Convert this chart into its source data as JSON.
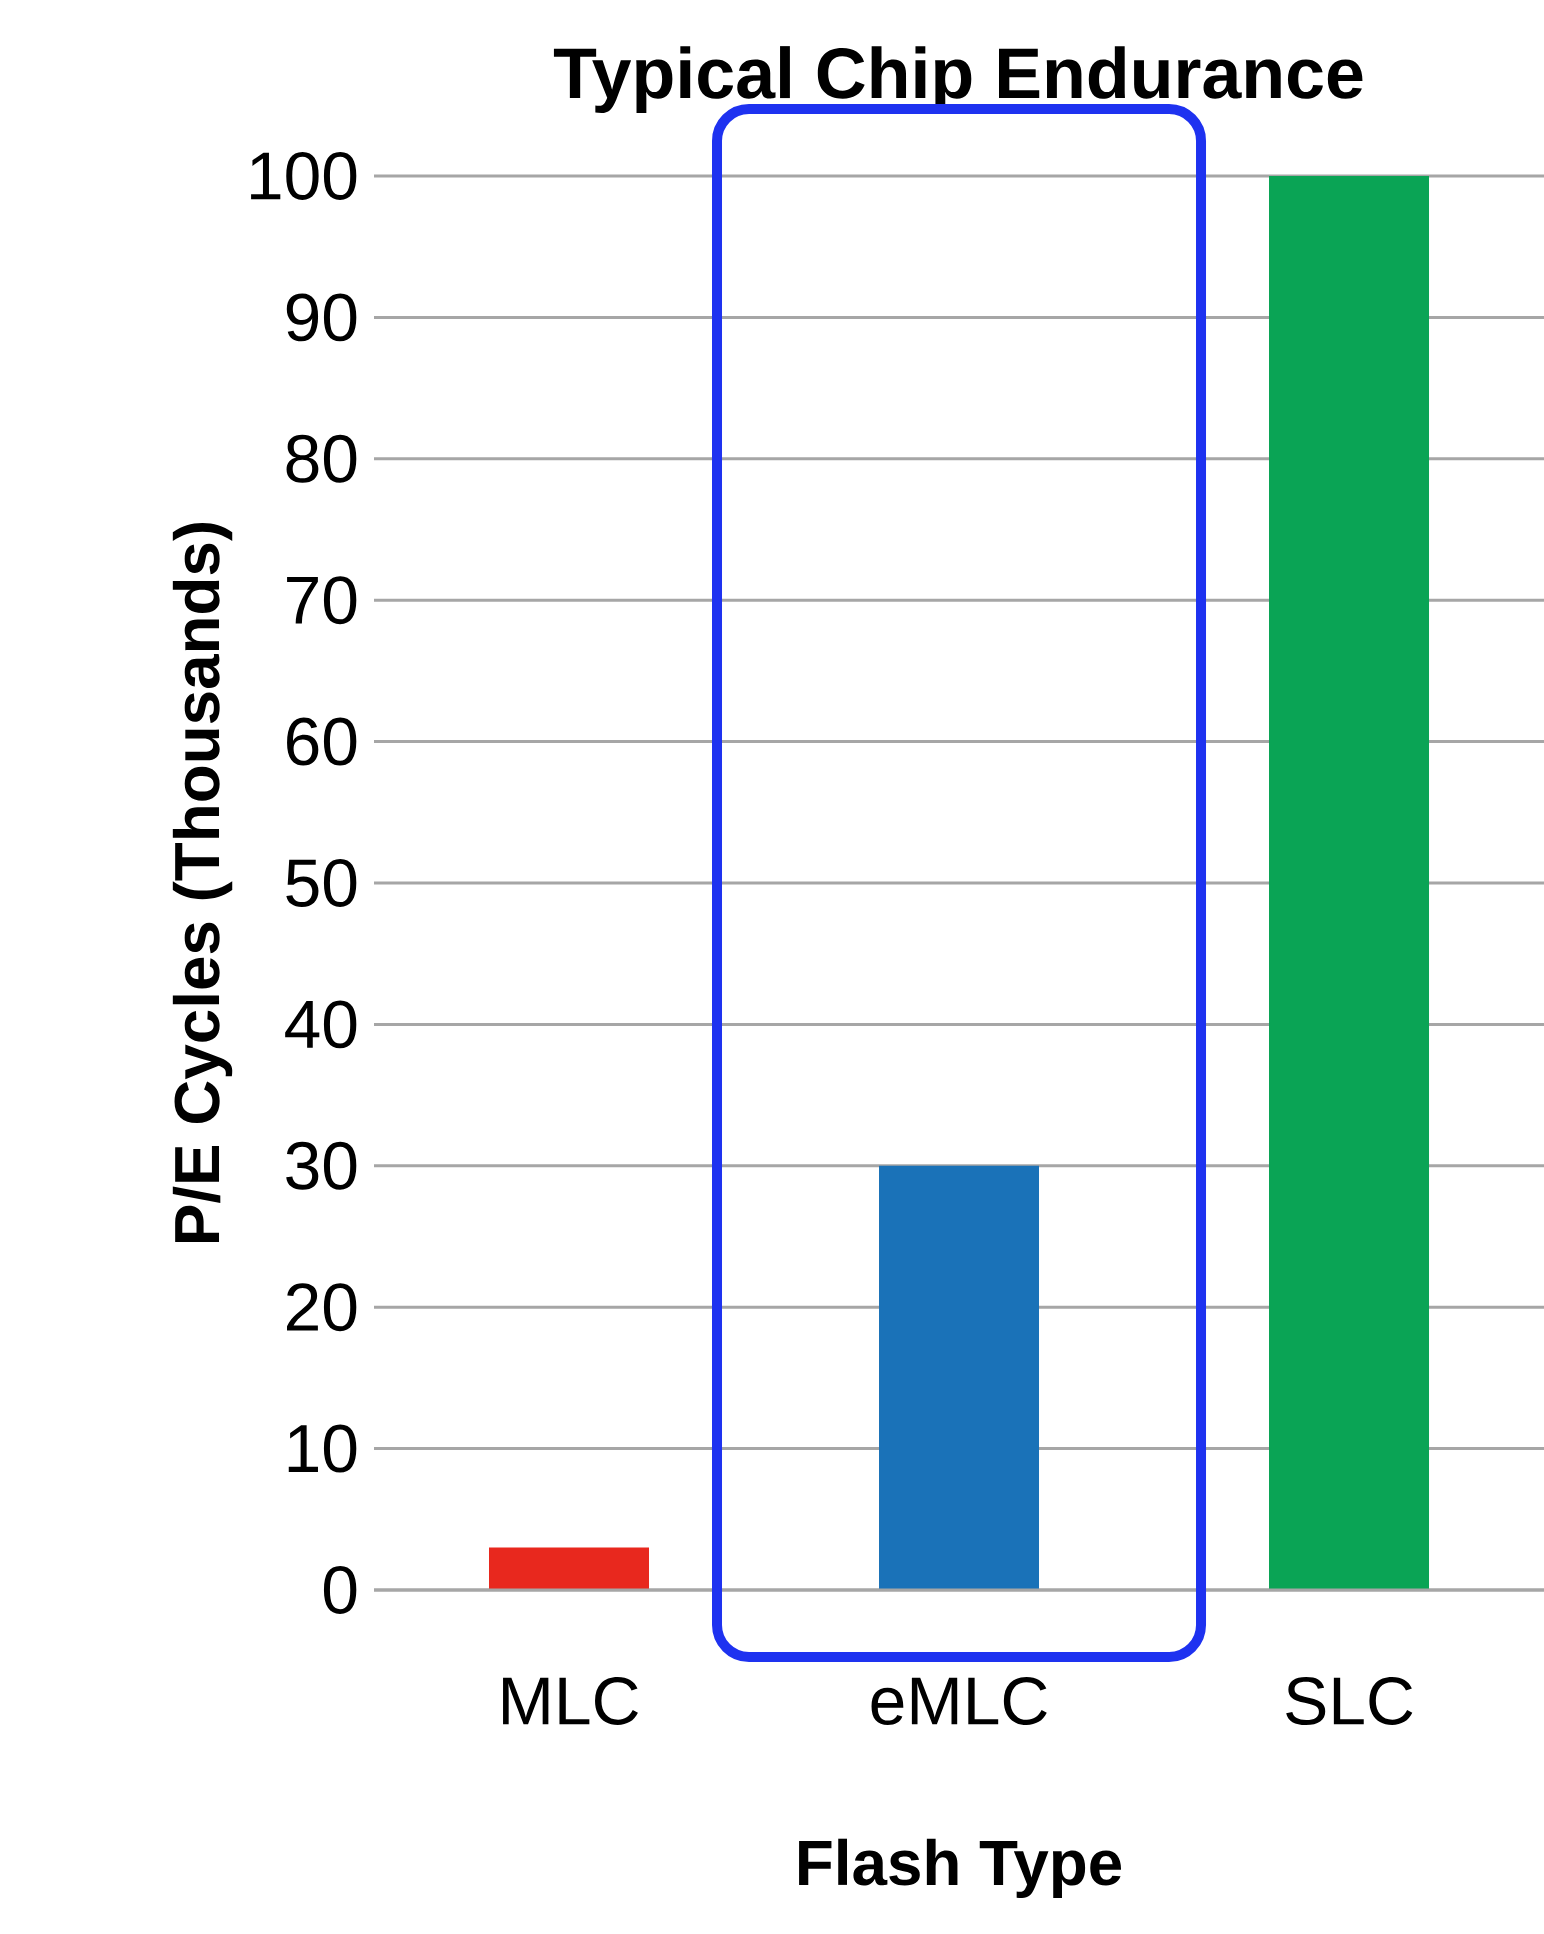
{
  "chart_data": {
    "type": "bar",
    "title": "Typical Chip Endurance",
    "xlabel": "Flash Type",
    "ylabel": "P/E Cycles (Thousands)",
    "categories": [
      "MLC",
      "eMLC",
      "SLC"
    ],
    "values": [
      3,
      30,
      100
    ],
    "colors": [
      "#e8281e",
      "#1a72b8",
      "#0aa455"
    ],
    "ylim": [
      0,
      100
    ],
    "yticks": [
      0,
      10,
      20,
      30,
      40,
      50,
      60,
      70,
      80,
      90,
      100
    ],
    "grid": "y"
  }
}
